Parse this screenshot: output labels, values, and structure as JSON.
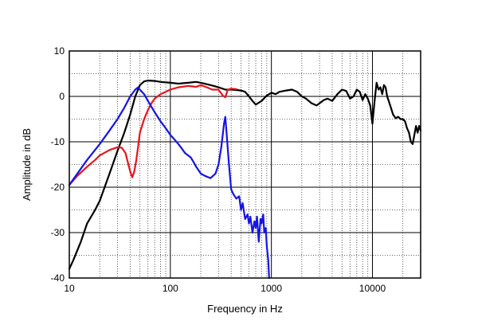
{
  "chart_data": {
    "type": "line",
    "title": "",
    "xlabel": "Frequency in Hz",
    "ylabel": "Amplitude in dB",
    "x_scale": "log",
    "xlim": [
      10,
      30000
    ],
    "ylim": [
      -40,
      10
    ],
    "x_ticks": [
      {
        "value": 10,
        "label": "10"
      },
      {
        "value": 100,
        "label": "100"
      },
      {
        "value": 1000,
        "label": "1000"
      },
      {
        "value": 10000,
        "label": "10000"
      }
    ],
    "y_ticks": [
      {
        "value": 10,
        "label": "10"
      },
      {
        "value": 0,
        "label": "0"
      },
      {
        "value": -10,
        "label": "-10"
      },
      {
        "value": -20,
        "label": "-20"
      },
      {
        "value": -30,
        "label": "-30"
      },
      {
        "value": -40,
        "label": "-40"
      }
    ],
    "grid": true,
    "legend": "none",
    "series": [
      {
        "color": "#000000",
        "x": [
          10,
          11,
          13,
          15,
          18,
          20,
          25,
          30,
          35,
          40,
          45,
          50,
          55,
          60,
          70,
          80,
          100,
          120,
          150,
          180,
          200,
          250,
          300,
          350,
          400,
          450,
          500,
          550,
          600,
          650,
          700,
          800,
          900,
          1000,
          1100,
          1200,
          1400,
          1600,
          1800,
          2000,
          2200,
          2500,
          2800,
          3000,
          3300,
          3600,
          4000,
          4500,
          5000,
          5500,
          6000,
          6500,
          7000,
          7500,
          8000,
          8500,
          9000,
          9500,
          10000,
          10500,
          11000,
          11500,
          12000,
          12500,
          13000,
          13500,
          14000,
          15000,
          16000,
          17000,
          18000,
          19000,
          20000,
          21000,
          22000,
          23000,
          24000,
          25000,
          26000,
          27000,
          28000,
          29000,
          30000
        ],
        "y": [
          -38,
          -36,
          -32,
          -28,
          -25,
          -23,
          -17,
          -12,
          -8,
          -4,
          0,
          2.5,
          3.3,
          3.5,
          3.4,
          3.2,
          3.0,
          2.8,
          3.0,
          3.2,
          3.0,
          2.5,
          2.0,
          1.5,
          1.5,
          1.4,
          1.3,
          1.0,
          0,
          -1.0,
          -1.8,
          -1.0,
          0.2,
          0.8,
          0.5,
          1.0,
          1.3,
          1.5,
          1.0,
          0,
          -0.5,
          -1.5,
          -2.0,
          -1.5,
          -0.8,
          -0.5,
          -1.0,
          0.5,
          1.5,
          1.2,
          -0.5,
          0,
          1.5,
          1.0,
          -0.8,
          0.5,
          -0.5,
          -2.0,
          -6.0,
          -1.0,
          3.0,
          1.5,
          2.0,
          0.5,
          2.5,
          2.0,
          0,
          -2.0,
          -4.0,
          -4.8,
          -4.5,
          -5.0,
          -5.0,
          -5.5,
          -7.0,
          -8.0,
          -10.0,
          -10.5,
          -8.5,
          -6.5,
          -8.0,
          -6.5,
          -7.5
        ]
      },
      {
        "color": "#e8141c",
        "x": [
          10,
          12,
          15,
          18,
          20,
          25,
          30,
          33,
          36,
          38,
          40,
          42,
          44,
          46,
          48,
          50,
          55,
          60,
          65,
          70,
          80,
          90,
          100,
          120,
          150,
          180,
          200,
          230,
          260,
          300,
          330,
          350,
          370,
          400,
          450
        ],
        "y": [
          -19.5,
          -17.5,
          -15.5,
          -14,
          -13,
          -11.8,
          -11.2,
          -11.3,
          -12.5,
          -14.5,
          -16.5,
          -17.8,
          -16.5,
          -14,
          -11,
          -8,
          -5,
          -3,
          -1.5,
          -0.5,
          0.5,
          1.0,
          1.5,
          2.0,
          2.3,
          2.1,
          2.5,
          2.0,
          1.5,
          1.5,
          0.2,
          -0.2,
          1.5,
          1.7,
          1.6
        ]
      },
      {
        "color": "#1414e6",
        "x": [
          10,
          15,
          20,
          25,
          30,
          35,
          40,
          45,
          48,
          50,
          55,
          60,
          70,
          80,
          90,
          100,
          110,
          120,
          130,
          140,
          150,
          160,
          170,
          180,
          200,
          220,
          250,
          280,
          300,
          320,
          340,
          350,
          360,
          380,
          400,
          420,
          450,
          480,
          500,
          520,
          550,
          580,
          600,
          620,
          650,
          680,
          700,
          720,
          750,
          780,
          800,
          830,
          850,
          880,
          900,
          930,
          950
        ],
        "y": [
          -19.5,
          -14,
          -10.5,
          -7.5,
          -5,
          -2.5,
          0,
          1.5,
          2.0,
          1.5,
          0.5,
          -1,
          -3.5,
          -5.5,
          -7,
          -8.5,
          -9.5,
          -10.5,
          -11.5,
          -12.5,
          -13,
          -13.5,
          -14.5,
          -15.5,
          -17,
          -17.5,
          -18,
          -17,
          -15,
          -11,
          -6,
          -4.5,
          -8,
          -15,
          -20.5,
          -21.5,
          -22.5,
          -22,
          -25,
          -23.5,
          -27,
          -26,
          -28,
          -26.5,
          -30,
          -27.5,
          -29,
          -26.5,
          -32,
          -27,
          -28,
          -26,
          -30,
          -29,
          -33,
          -36,
          -40
        ]
      }
    ]
  }
}
